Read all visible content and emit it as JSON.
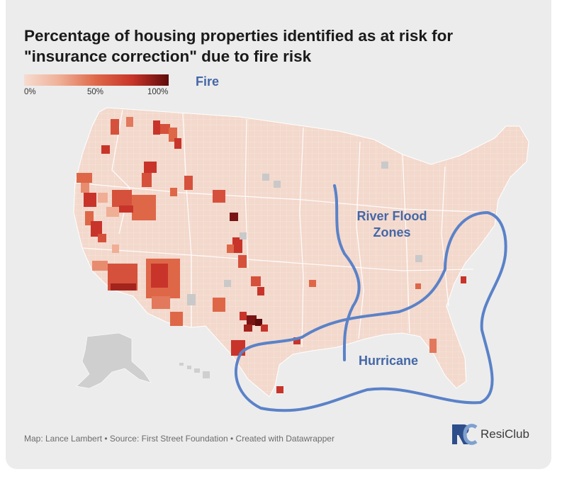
{
  "title_line1": "Percentage of housing properties identified as at risk for",
  "title_line2": "\"insurance correction\" due to fire risk",
  "legend": {
    "ticks": [
      "0%",
      "50%",
      "100%"
    ],
    "colors": [
      "#f6dcd0",
      "#efae95",
      "#de6748",
      "#c8342a",
      "#5e0b0b"
    ]
  },
  "overlay_labels": {
    "fire": "Fire",
    "river_flood_line1": "River Flood",
    "river_flood_line2": "Zones",
    "hurricane": "Hurricane"
  },
  "overlay_color": "#5a82c8",
  "footer": "Map: Lance Lambert • Source: First Street Foundation • Created with Datawrapper",
  "logo": {
    "text": "ResiClub",
    "mark": "RC"
  }
}
